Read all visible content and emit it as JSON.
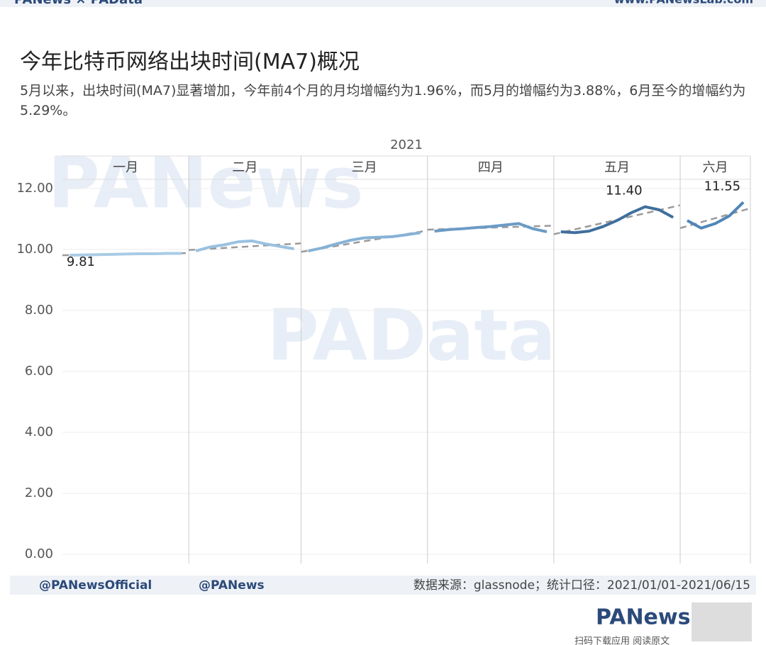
{
  "header": {
    "brand": "PANews × PAData",
    "url": "www.PANewsLab.com"
  },
  "chart_data": {
    "type": "line",
    "title": "今年比特币网络出块时间(MA7)概况",
    "subtitle": "5月以来，出块时间(MA7)显著增加，今年前4个月的月均增幅约为1.96%，而5月的增幅约为3.88%，6月至今的增幅约为5.29%。",
    "year": "2021",
    "ylim": [
      -0.3,
      12.3
    ],
    "yticks": [
      {
        "value": 0,
        "label": "0.00"
      },
      {
        "value": 2,
        "label": "2.00"
      },
      {
        "value": 4,
        "label": "4.00"
      },
      {
        "value": 6,
        "label": "6.00"
      },
      {
        "value": 8,
        "label": "8.00"
      },
      {
        "value": 10,
        "label": "10.00"
      },
      {
        "value": 12,
        "label": "12.00"
      }
    ],
    "grid": true,
    "trend_color": "#9a9a9a",
    "months": [
      {
        "label": "一月",
        "color": "#a9cbe5",
        "values": [
          9.81,
          9.82,
          9.83,
          9.84,
          9.85,
          9.86,
          9.86,
          9.87,
          9.87
        ],
        "value_labels": [
          "9.81",
          null,
          null,
          null,
          null,
          null,
          null,
          null,
          null
        ],
        "trend": [
          9.81,
          9.88
        ]
      },
      {
        "label": "二月",
        "color": "#9ac1e0",
        "values": [
          9.95,
          10.08,
          10.15,
          10.25,
          10.28,
          10.18,
          10.1,
          10.02
        ],
        "trend": [
          9.98,
          10.2
        ]
      },
      {
        "label": "三月",
        "color": "#86b2d6",
        "values": [
          9.95,
          10.05,
          10.18,
          10.3,
          10.38,
          10.4,
          10.42,
          10.48,
          10.55
        ],
        "trend": [
          9.92,
          10.62
        ]
      },
      {
        "label": "四月",
        "color": "#6a9bc6",
        "values": [
          10.6,
          10.65,
          10.68,
          10.72,
          10.75,
          10.8,
          10.85,
          10.68,
          10.58
        ],
        "trend": [
          10.65,
          10.78
        ]
      },
      {
        "label": "五月",
        "color": "#3f6f9d",
        "values": [
          10.58,
          10.55,
          10.6,
          10.75,
          10.95,
          11.2,
          11.4,
          11.3,
          11.05
        ],
        "value_labels": [
          null,
          null,
          null,
          null,
          null,
          null,
          "11.40",
          null,
          null
        ],
        "trend": [
          10.5,
          11.45
        ]
      },
      {
        "label": "六月",
        "color": "#4f86b8",
        "values": [
          10.95,
          10.7,
          10.85,
          11.1,
          11.55
        ],
        "value_labels": [
          null,
          null,
          null,
          null,
          "11.55"
        ],
        "trend": [
          10.7,
          11.35
        ]
      }
    ]
  },
  "watermarks": [
    "PANews",
    "PAData"
  ],
  "footer": {
    "twitter": "@PANewsOfficial",
    "weibo": "@PANews",
    "source": "数据来源：glassnode；统计口径：2021/01/01-2021/06/15",
    "logo": "PANews",
    "scan": "扫码下载应用 阅读原文"
  }
}
